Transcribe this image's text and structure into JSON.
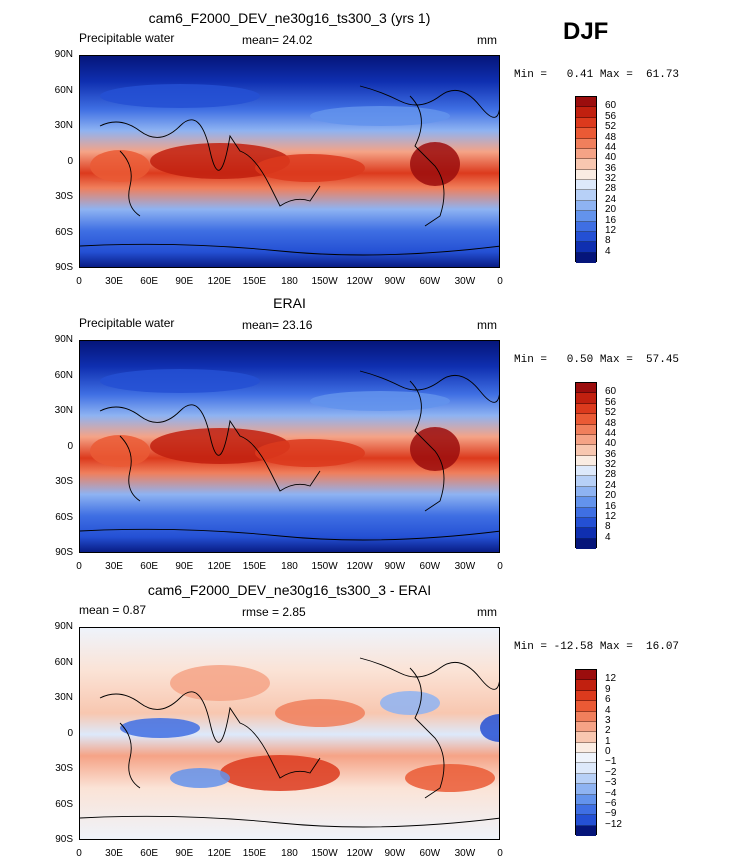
{
  "season": "DJF",
  "panels": [
    {
      "title": "cam6_F2000_DEV_ne30g16_ts300_3 (yrs 1)",
      "left_label": "Precipitable water",
      "stat_text": "mean=  24.02",
      "units": "mm",
      "minmax": "Min =   0.41 Max =  61.73",
      "colorbar_levels": [
        "60",
        "56",
        "52",
        "48",
        "44",
        "40",
        "36",
        "32",
        "28",
        "24",
        "20",
        "16",
        "12",
        "8",
        "4"
      ],
      "colorbar_colors": [
        "#9b0d0d",
        "#c1200f",
        "#dc3a1d",
        "#ea5a35",
        "#f07f5c",
        "#f5a386",
        "#f8c7b0",
        "#faece2",
        "#dde9fb",
        "#b7d0f7",
        "#8eb3f2",
        "#6393ec",
        "#3f6fe3",
        "#2450d4",
        "#0f2fb0",
        "#05157a"
      ],
      "gradient": "gradA"
    },
    {
      "title": "ERAI",
      "left_label": "Precipitable water",
      "stat_text": "mean=  23.16",
      "units": "mm",
      "minmax": "Min =   0.50 Max =  57.45",
      "colorbar_levels": [
        "60",
        "56",
        "52",
        "48",
        "44",
        "40",
        "36",
        "32",
        "28",
        "24",
        "20",
        "16",
        "12",
        "8",
        "4"
      ],
      "colorbar_colors": [
        "#9b0d0d",
        "#c1200f",
        "#dc3a1d",
        "#ea5a35",
        "#f07f5c",
        "#f5a386",
        "#f8c7b0",
        "#faece2",
        "#dde9fb",
        "#b7d0f7",
        "#8eb3f2",
        "#6393ec",
        "#3f6fe3",
        "#2450d4",
        "#0f2fb0",
        "#05157a"
      ],
      "gradient": "gradB"
    },
    {
      "title": "cam6_F2000_DEV_ne30g16_ts300_3 - ERAI",
      "left_label": "mean =   0.87",
      "stat_text": "rmse =   2.85",
      "units": "mm",
      "minmax": "Min = -12.58 Max =  16.07",
      "colorbar_levels": [
        "12",
        "9",
        "6",
        "4",
        "3",
        "2",
        "1",
        "0",
        "−1",
        "−2",
        "−3",
        "−4",
        "−6",
        "−9",
        "−12"
      ],
      "colorbar_colors": [
        "#9b0d0d",
        "#c1200f",
        "#dc3a1d",
        "#ea5a35",
        "#f07f5c",
        "#f5a386",
        "#f8c7b0",
        "#faece2",
        "#eef3fb",
        "#dde9fb",
        "#b7d0f7",
        "#8eb3f2",
        "#6393ec",
        "#3f6fe3",
        "#2450d4",
        "#05157a"
      ],
      "gradient": "gradC"
    }
  ],
  "lat_ticks": [
    "90N",
    "60N",
    "30N",
    "0",
    "30S",
    "60S",
    "90S"
  ],
  "lon_ticks": [
    "0",
    "30E",
    "60E",
    "90E",
    "120E",
    "150E",
    "180",
    "150W",
    "120W",
    "90W",
    "60W",
    "30W",
    "0"
  ]
}
